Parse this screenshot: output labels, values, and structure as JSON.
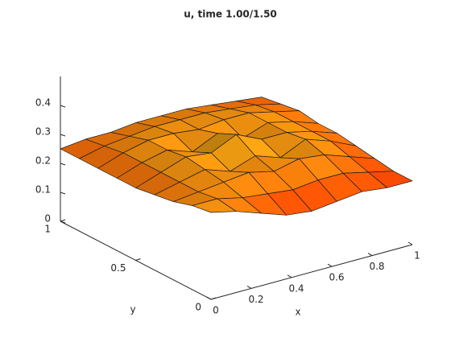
{
  "chart_data": {
    "type": "surface",
    "title": "u, time 1.00/1.50",
    "xlabel": "x",
    "ylabel": "y",
    "x": [
      0,
      0.125,
      0.25,
      0.375,
      0.5,
      0.625,
      0.75,
      0.875,
      1
    ],
    "y": [
      0,
      0.125,
      0.25,
      0.375,
      0.5,
      0.625,
      0.75,
      0.875,
      1
    ],
    "z": [
      [
        0.3,
        0.28,
        0.25,
        0.22,
        0.21,
        0.22,
        0.23,
        0.22,
        0.22
      ],
      [
        0.29,
        0.29,
        0.27,
        0.26,
        0.25,
        0.26,
        0.26,
        0.24,
        0.22
      ],
      [
        0.27,
        0.28,
        0.29,
        0.3,
        0.28,
        0.3,
        0.29,
        0.26,
        0.23
      ],
      [
        0.26,
        0.28,
        0.3,
        0.27,
        0.3,
        0.27,
        0.31,
        0.28,
        0.24
      ],
      [
        0.25,
        0.28,
        0.31,
        0.3,
        0.34,
        0.3,
        0.3,
        0.28,
        0.25
      ],
      [
        0.25,
        0.28,
        0.3,
        0.27,
        0.31,
        0.27,
        0.3,
        0.28,
        0.25
      ],
      [
        0.25,
        0.28,
        0.3,
        0.3,
        0.29,
        0.3,
        0.3,
        0.28,
        0.26
      ],
      [
        0.25,
        0.27,
        0.28,
        0.29,
        0.29,
        0.29,
        0.28,
        0.27,
        0.25
      ],
      [
        0.25,
        0.26,
        0.26,
        0.27,
        0.27,
        0.27,
        0.26,
        0.25,
        0.24
      ]
    ],
    "xlim": [
      0,
      1
    ],
    "ylim": [
      0,
      1
    ],
    "zlim": [
      0,
      0.5
    ],
    "xticks": [
      0,
      0.2,
      0.4,
      0.6,
      0.8,
      1
    ],
    "yticks": [
      0,
      0.5,
      1
    ],
    "zticks": [
      0,
      0.1,
      0.2,
      0.3,
      0.4
    ],
    "colormap": [
      "#ff3a00",
      "#ffd21a"
    ]
  }
}
